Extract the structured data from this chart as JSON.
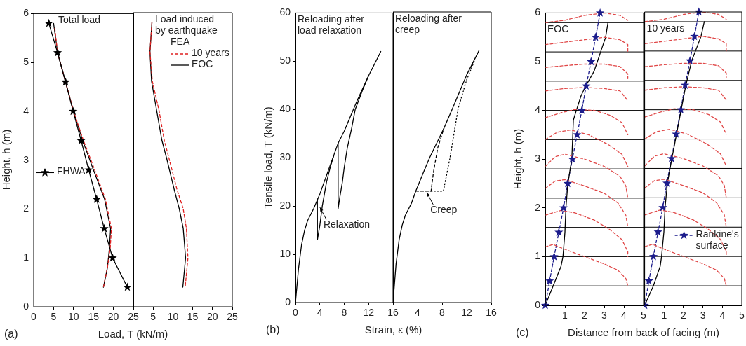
{
  "chart_data": [
    {
      "type": "line",
      "title": "(a)",
      "xlabel": "Load, T (kN/m)",
      "ylabel": "Height, h (m)",
      "xlim": [
        0,
        25
      ],
      "xticks": [
        0,
        5,
        10,
        15,
        20,
        25
      ],
      "ylim": [
        0,
        6
      ],
      "yticks": [
        0,
        1,
        2,
        3,
        4,
        5,
        6
      ],
      "grid": false,
      "legend": "left",
      "annotations": [
        "Total load"
      ],
      "series": [
        {
          "name": "FHWA",
          "color": "#000000",
          "marker": "star",
          "x": [
            3.8,
            6,
            8,
            9.9,
            11.9,
            13.8,
            15.8,
            17.7,
            19.8,
            23.5
          ],
          "values": [
            5.8,
            5.2,
            4.6,
            4,
            3.4,
            2.8,
            2.2,
            1.6,
            1,
            0.4
          ]
        },
        {
          "color": "#e02020",
          "line_style": "dashed",
          "x": [
            5.3,
            6,
            8,
            10,
            12.5,
            15.3,
            18,
            19.5,
            19.2,
            18.5,
            17.5
          ],
          "values": [
            5.7,
            5.2,
            4.6,
            4,
            3.4,
            2.8,
            2.2,
            1.6,
            1.2,
            0.8,
            0.4
          ]
        },
        {
          "color": "#000000",
          "x": [
            5,
            6,
            8,
            10,
            12.3,
            15,
            17.8,
            19.3,
            19,
            18.5,
            17.5
          ],
          "values": [
            5.8,
            5.2,
            4.6,
            4,
            3.4,
            2.8,
            2.2,
            1.6,
            1.2,
            0.8,
            0.4
          ]
        }
      ]
    },
    {
      "type": "line",
      "xlim": [
        0,
        25
      ],
      "xticks": [
        5,
        10,
        15,
        20,
        25
      ],
      "ylim": [
        0,
        6
      ],
      "yticks": [
        0,
        1,
        2,
        3,
        4,
        5,
        6
      ],
      "tick_labels": "x",
      "grid": false,
      "legend": "top right",
      "legend_title": "FEA",
      "annotations": [
        "Load induced by earthquake"
      ],
      "series": [
        {
          "name": "10 years",
          "color": "#e02020",
          "line_style": "dashed",
          "x": [
            4.7,
            4.2,
            4.8,
            6.5,
            7.8,
            9.1,
            11,
            12.6,
            13.4,
            13.8,
            13.1
          ],
          "values": [
            5.8,
            5.2,
            4.6,
            4,
            3.4,
            3,
            2.4,
            2,
            1.6,
            1,
            0.4
          ]
        },
        {
          "name": "EOC",
          "color": "#000000",
          "x": [
            4.7,
            4.2,
            4.6,
            5.9,
            7.2,
            8.5,
            10.3,
            11.6,
            12.6,
            13.2,
            12.5
          ],
          "values": [
            5.8,
            5.2,
            4.6,
            4,
            3.4,
            3,
            2.4,
            2,
            1.6,
            1,
            0.4
          ]
        }
      ]
    },
    {
      "type": "line",
      "title": "(b)",
      "xlabel": "Strain, ε (%)",
      "ylabel": "Tensile load, T (kN/m)",
      "xlim": [
        0,
        16
      ],
      "xticks": [
        0,
        4,
        8,
        12,
        16
      ],
      "ylim": [
        0,
        60
      ],
      "yticks": [
        0,
        10,
        20,
        30,
        40,
        50,
        60
      ],
      "grid": false,
      "annotations": [
        "Reloading after load relaxation",
        {
          "text": "Relaxation",
          "x": 3.9,
          "y": 20
        }
      ],
      "series": [
        {
          "color": "#000000",
          "x": [
            0,
            0.5,
            1,
            1.5,
            2,
            3,
            4,
            5,
            6,
            7,
            8,
            10,
            12,
            14
          ],
          "values": [
            0,
            7,
            12,
            15,
            17,
            19.5,
            22.5,
            26,
            29.5,
            33,
            35.5,
            41.5,
            47,
            52
          ]
        },
        {
          "color": "#000000",
          "x": [
            3.6,
            3.6,
            4,
            4.4,
            5.1,
            5.7,
            6.3
          ],
          "values": [
            21.5,
            13,
            16,
            20,
            25,
            28,
            30.5
          ]
        },
        {
          "color": "#000000",
          "x": [
            7,
            7,
            7.3,
            7.7,
            8,
            8.5,
            9.2,
            9.8,
            11,
            12
          ],
          "values": [
            33,
            19.5,
            22,
            25,
            28,
            32,
            36,
            40,
            44,
            47
          ]
        }
      ]
    },
    {
      "type": "line",
      "xlim": [
        0,
        16
      ],
      "xticks": [
        4,
        8,
        12,
        16
      ],
      "ylim": [
        0,
        60
      ],
      "yticks": [
        0,
        10,
        20,
        30,
        40,
        50,
        60
      ],
      "tick_labels": "x",
      "grid": false,
      "annotations": [
        "Reloading after creep",
        {
          "text": "Creep",
          "x": 5.4,
          "y": 23
        }
      ],
      "series": [
        {
          "color": "#000000",
          "x": [
            0,
            0.5,
            1,
            1.5,
            2,
            3,
            3.7,
            5,
            6,
            8.3,
            9.5,
            12,
            14
          ],
          "values": [
            0,
            8,
            13,
            16,
            18,
            20.5,
            23,
            27,
            30,
            36,
            39.5,
            47,
            52
          ]
        },
        {
          "color": "#000000",
          "line_style": "dashed",
          "x": [
            3.7,
            6.2,
            6.6,
            7.3,
            8.3
          ],
          "values": [
            23,
            23,
            27,
            32,
            36
          ]
        },
        {
          "color": "#000000",
          "line_style": "dotted",
          "x": [
            6.2,
            8.2,
            9.3,
            10.6,
            12,
            13.3
          ],
          "values": [
            23,
            23,
            30,
            40,
            46,
            50
          ]
        }
      ]
    },
    {
      "type": "line",
      "title": "(c)",
      "xlabel": "Distance from back of facing (m)",
      "ylabel": "Height, h (m)",
      "xlim": [
        0,
        5
      ],
      "xticks": [
        1,
        2,
        3,
        4,
        5
      ],
      "ylim": [
        0,
        6
      ],
      "yticks": [
        0,
        1,
        2,
        3,
        4,
        5,
        6
      ],
      "grid": false,
      "annotations": [
        "EOC"
      ],
      "ref_lines": [
        {
          "axis": "y",
          "value": 0.4
        },
        {
          "axis": "y",
          "value": 1
        },
        {
          "axis": "y",
          "value": 1.6
        },
        {
          "axis": "y",
          "value": 2.2
        },
        {
          "axis": "y",
          "value": 2.8
        },
        {
          "axis": "y",
          "value": 3.4
        },
        {
          "axis": "y",
          "value": 4
        },
        {
          "axis": "y",
          "value": 4.6
        },
        {
          "axis": "y",
          "value": 5.2
        },
        {
          "axis": "y",
          "value": 5.8
        }
      ],
      "series": [
        {
          "color": "#e04848",
          "line_style": "dashed",
          "x": [
            0,
            0.4,
            1,
            2,
            3,
            3.7,
            4.1,
            4.2,
            null,
            0,
            0.8,
            1.5,
            2.5,
            3.3,
            3.9,
            4.2,
            4.2,
            null,
            0,
            0.5,
            1,
            2,
            3,
            3.7,
            4.1,
            4.2,
            null,
            0,
            0.5,
            1,
            2,
            3,
            3.8,
            4.1,
            4.2,
            null,
            0,
            0.6,
            1.3,
            2.2,
            3.2,
            3.9,
            4.2,
            null,
            0,
            0.8,
            1.5,
            2.5,
            3.3,
            3.9,
            4.2,
            null,
            0,
            1,
            2,
            3,
            3.8,
            4.2,
            null,
            0,
            1,
            2,
            3,
            3.8,
            4.2,
            4.2,
            null,
            0,
            1,
            2,
            3,
            3.8,
            4.2,
            4.2,
            null,
            0,
            1,
            2,
            3,
            3.8,
            4.2
          ],
          "values": [
            1.2,
            1.25,
            1.15,
            1,
            0.85,
            0.72,
            0.55,
            0.4,
            null,
            1.85,
            1.95,
            1.9,
            1.75,
            1.55,
            1.35,
            1.1,
            1,
            null,
            2.4,
            2.55,
            2.58,
            2.45,
            2.3,
            2.1,
            1.85,
            1.6,
            null,
            2.85,
            3.05,
            3.1,
            3,
            2.85,
            2.65,
            2.45,
            2.2,
            null,
            3.4,
            3.55,
            3.6,
            3.5,
            3.3,
            3.1,
            2.85,
            null,
            3.85,
            3.95,
            4.02,
            4,
            3.9,
            3.75,
            3.5,
            null,
            4.4,
            4.45,
            4.47,
            4.45,
            4.4,
            4.2,
            null,
            4.88,
            4.92,
            4.95,
            4.95,
            4.9,
            4.75,
            4.65,
            null,
            5.35,
            5.4,
            5.45,
            5.5,
            5.45,
            5.35,
            5.2,
            null,
            5.8,
            5.85,
            5.95,
            6,
            5.95,
            5.85
          ]
        },
        {
          "color": "#000000",
          "x": [
            0,
            0.4,
            0.8,
            0.9,
            1,
            1.05,
            1.15,
            1.35,
            1.4,
            1.43,
            1.58,
            1.82,
            2.06,
            2.48,
            2.65,
            2.9,
            3.07,
            3.19
          ],
          "values": [
            0,
            0.4,
            0.8,
            1,
            1.5,
            2,
            2.5,
            3,
            3.5,
            3.8,
            4,
            4.3,
            4.5,
            4.8,
            5,
            5.3,
            5.5,
            5.8
          ]
        },
        {
          "color": "#1c1c8c",
          "line_style": "dashed",
          "marker": "star",
          "x": [
            0,
            0.22,
            0.45,
            0.69,
            0.93,
            1.14,
            1.38,
            1.62,
            1.86,
            2.08,
            2.33,
            2.56,
            2.79
          ],
          "values": [
            0,
            0.5,
            1,
            1.5,
            2,
            2.5,
            3,
            3.5,
            4,
            4.5,
            5,
            5.5,
            6
          ]
        }
      ]
    },
    {
      "type": "line",
      "xlim": [
        0,
        5
      ],
      "xticks": [
        1,
        2,
        3,
        4,
        5
      ],
      "ylim": [
        0,
        6
      ],
      "yticks": [
        0,
        1,
        2,
        3,
        4,
        5,
        6
      ],
      "tick_labels": "x",
      "grid": false,
      "legend": "bottom right",
      "annotations": [
        "10 years"
      ],
      "ref_lines": [
        {
          "axis": "y",
          "value": 0.4
        },
        {
          "axis": "y",
          "value": 1
        },
        {
          "axis": "y",
          "value": 1.6
        },
        {
          "axis": "y",
          "value": 2.2
        },
        {
          "axis": "y",
          "value": 2.8
        },
        {
          "axis": "y",
          "value": 3.4
        },
        {
          "axis": "y",
          "value": 4
        },
        {
          "axis": "y",
          "value": 4.6
        },
        {
          "axis": "y",
          "value": 5.2
        },
        {
          "axis": "y",
          "value": 5.8
        }
      ],
      "series": [
        {
          "color": "#e04848",
          "line_style": "dashed",
          "x": [
            0,
            0.4,
            1,
            2,
            3,
            3.7,
            4.1,
            4.2,
            null,
            0,
            0.8,
            1.5,
            2.5,
            3.3,
            3.9,
            4.2,
            4.2,
            null,
            0,
            0.5,
            1,
            2,
            3,
            3.7,
            4.1,
            4.2,
            null,
            0,
            0.5,
            1,
            2,
            3,
            3.8,
            4.1,
            4.2,
            null,
            0,
            0.6,
            1.3,
            2.2,
            3.2,
            3.9,
            4.2,
            null,
            0,
            0.8,
            1.5,
            2.5,
            3.3,
            3.9,
            4.2,
            null,
            0,
            1,
            2,
            3,
            3.8,
            4.2,
            null,
            0,
            1,
            2,
            3,
            3.8,
            4.2,
            4.2,
            null,
            0,
            1,
            2,
            3,
            3.8,
            4.2,
            4.2,
            null,
            0,
            1,
            2,
            3,
            3.8,
            4.2
          ],
          "values": [
            1.2,
            1.25,
            1.15,
            1,
            0.85,
            0.72,
            0.55,
            0.4,
            null,
            1.85,
            1.95,
            1.9,
            1.75,
            1.55,
            1.35,
            1.1,
            1,
            null,
            2.4,
            2.55,
            2.58,
            2.45,
            2.3,
            2.1,
            1.85,
            1.6,
            null,
            2.85,
            3.05,
            3.1,
            3,
            2.85,
            2.65,
            2.45,
            2.2,
            null,
            3.4,
            3.55,
            3.6,
            3.5,
            3.3,
            3.1,
            2.85,
            null,
            3.85,
            3.95,
            4.02,
            4,
            3.9,
            3.75,
            3.5,
            null,
            4.4,
            4.45,
            4.47,
            4.45,
            4.4,
            4.2,
            null,
            4.88,
            4.92,
            4.95,
            4.95,
            4.9,
            4.75,
            4.65,
            null,
            5.35,
            5.4,
            5.45,
            5.5,
            5.45,
            5.35,
            5.2,
            null,
            5.8,
            5.85,
            5.95,
            6,
            5.95,
            5.85
          ]
        },
        {
          "color": "#000000",
          "x": [
            0,
            0.45,
            0.8,
            0.87,
            0.99,
            1.05,
            1.17,
            1.4,
            1.64,
            1.88,
            2.12,
            2.42,
            2.71,
            2.9,
            3.07
          ],
          "values": [
            0,
            0.4,
            0.8,
            1,
            1.5,
            2,
            2.5,
            3,
            3.5,
            4,
            4.5,
            5,
            5.3,
            5.5,
            5.8
          ]
        },
        {
          "name": "Rankine's surface",
          "color": "#1c1c8c",
          "line_style": "dashed",
          "marker": "star",
          "x": [
            0,
            0.22,
            0.45,
            0.69,
            0.93,
            1.14,
            1.38,
            1.62,
            1.86,
            2.08,
            2.33,
            2.56,
            2.79
          ],
          "values": [
            0,
            0.5,
            1,
            1.5,
            2,
            2.5,
            3,
            3.5,
            4,
            4.5,
            5,
            5.5,
            6
          ]
        }
      ]
    }
  ]
}
